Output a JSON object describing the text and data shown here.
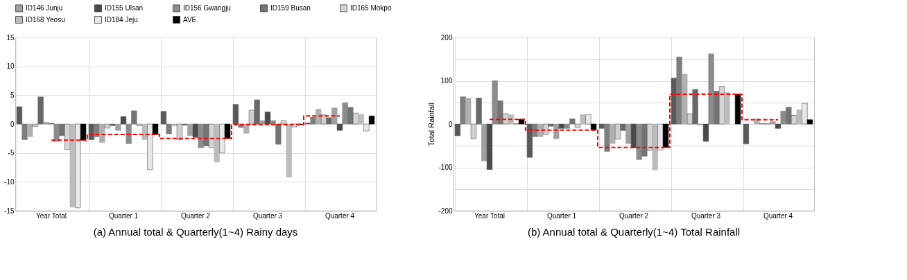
{
  "chart_data": [
    {
      "type": "bar",
      "title": "(a) Annual total & Quarterly(1~4) Rainy days",
      "categories": [
        "Year Total",
        "Quarter 1",
        "Quarter 2",
        "Quarter 3",
        "Quarter 4"
      ],
      "ylim": [
        -15,
        15
      ],
      "yticks": [
        -15,
        -10,
        -5,
        0,
        5,
        10,
        15
      ],
      "grid": true,
      "legend": "top",
      "series": [
        {
          "color": "#5a5a5a",
          "values": [
            3.0,
            -2.7,
            2.2,
            3.4,
            0.2
          ]
        },
        {
          "color": "#7e7e7e",
          "values": [
            -2.7,
            -2.2,
            -1.7,
            -0.6,
            1.2
          ]
        },
        {
          "color": "#b0b0b0",
          "values": [
            -2.2,
            -3.2,
            -0.3,
            -1.6,
            2.6
          ]
        },
        {
          "color": "#d0d0d0",
          "values": [
            -0.4,
            -0.7,
            -2.7,
            2.4,
            1.6
          ]
        },
        {
          "color": "#686868",
          "values": [
            4.7,
            -0.3,
            -0.2,
            4.2,
            1.1
          ]
        },
        {
          "name": "ID146 Junju",
          "color": "#a0a0a0",
          "values": [
            0.3,
            -1.1,
            -2.0,
            0.6,
            2.8
          ]
        },
        {
          "name": "ID155 Ulsan",
          "color": "#4a4a4a",
          "values": [
            0.1,
            1.3,
            -2.3,
            2.1,
            -1.1
          ]
        },
        {
          "name": "ID156 Gwangju",
          "color": "#8c8c8c",
          "values": [
            -3.0,
            -3.4,
            -4.1,
            0.6,
            3.7
          ]
        },
        {
          "name": "ID159 Busan",
          "color": "#747474",
          "values": [
            -2.0,
            2.3,
            -3.8,
            -3.5,
            2.9
          ]
        },
        {
          "name": "ID165 Mokpo",
          "color": "#d4d4d4",
          "values": [
            -4.4,
            -0.3,
            -4.1,
            0.6,
            1.9
          ]
        },
        {
          "name": "ID168 Yeosu",
          "color": "#bcbcbc",
          "values": [
            -14.4,
            -2.7,
            -6.6,
            -9.2,
            1.7
          ]
        },
        {
          "name": "ID184 Jeju",
          "color": "#e8e8e8",
          "values": [
            -14.5,
            -7.9,
            -5.0,
            -0.5,
            -1.2
          ]
        },
        {
          "name": "AVE.",
          "color": "#000000",
          "values": [
            -2.8,
            -1.8,
            -2.5,
            -0.1,
            1.4
          ]
        },
        {
          "type": "step",
          "color": "#ff0000",
          "line_style": "dashed",
          "values": [
            -2.8,
            -1.8,
            -2.5,
            -0.1,
            1.4
          ]
        }
      ]
    },
    {
      "type": "bar",
      "title": "(b) Annual total & Quarterly(1~4) Total Rainfall",
      "ylabel": "Total Rainfall",
      "categories": [
        "Year Total",
        "Quarter 1",
        "Quarter 2",
        "Quarter 3",
        "Quarter 4"
      ],
      "ylim": [
        -200,
        200
      ],
      "yticks": [
        -200,
        {
          "value": -150,
          "label": null
        },
        -100,
        {
          "value": -50,
          "label": null
        },
        0,
        {
          "value": 50,
          "label": null
        },
        100,
        {
          "value": 150,
          "label": null
        },
        200
      ],
      "grid": true,
      "series": [
        {
          "color": "#5a5a5a",
          "values": [
            -27,
            -77,
            -10,
            106,
            -46
          ]
        },
        {
          "color": "#7e7e7e",
          "values": [
            63,
            -29,
            -63,
            155,
            0
          ]
        },
        {
          "color": "#b0b0b0",
          "values": [
            60,
            -29,
            -45,
            115,
            12
          ]
        },
        {
          "color": "#d0d0d0",
          "values": [
            -34,
            -24,
            -35,
            24,
            2
          ]
        },
        {
          "color": "#686868",
          "values": [
            60,
            -5,
            -15,
            80,
            1
          ]
        },
        {
          "color": "#a0a0a0",
          "values": [
            -85,
            -34,
            -45,
            -2,
            6
          ]
        },
        {
          "color": "#4a4a4a",
          "values": [
            -105,
            -10,
            -55,
            -40,
            -10
          ]
        },
        {
          "color": "#8c8c8c",
          "values": [
            100,
            -10,
            -82,
            162,
            30
          ]
        },
        {
          "color": "#747474",
          "values": [
            54,
            12,
            -74,
            76,
            39
          ]
        },
        {
          "color": "#d4d4d4",
          "values": [
            24,
            -8,
            -61,
            87,
            20
          ]
        },
        {
          "color": "#bcbcbc",
          "values": [
            22,
            22,
            -106,
            73,
            33
          ]
        },
        {
          "color": "#e8e8e8",
          "values": [
            1,
            22,
            -60,
            0,
            48
          ]
        },
        {
          "color": "#000000",
          "values": [
            11,
            -14,
            -54,
            69,
            10
          ]
        },
        {
          "type": "step",
          "color": "#ff0000",
          "line_style": "dashed",
          "values": [
            11,
            -14,
            -54,
            69,
            10
          ]
        }
      ]
    }
  ]
}
